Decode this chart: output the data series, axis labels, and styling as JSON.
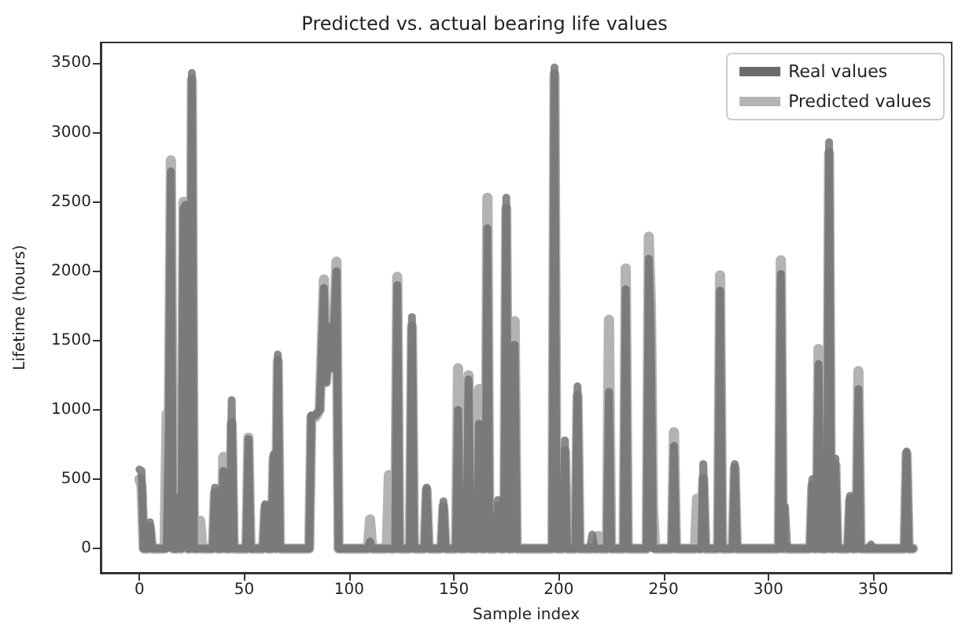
{
  "chart_data": {
    "type": "line",
    "title": "Predicted vs. actual bearing life values",
    "xlabel": "Sample index",
    "ylabel": "Lifetime (hours)",
    "xlim": [
      -18.5,
      387.5
    ],
    "xticks": [
      0,
      50,
      100,
      150,
      200,
      250,
      300,
      350
    ],
    "ylim": [
      -175,
      3650
    ],
    "yticks": [
      0,
      500,
      1000,
      1500,
      2000,
      2500,
      3000,
      3500
    ],
    "grid": false,
    "legend": "top right",
    "line_style": "solid",
    "series": [
      {
        "name": "Real values",
        "color": "#6b6b6b",
        "x": [
          0,
          1,
          2,
          4,
          5,
          6,
          13,
          14,
          15,
          16,
          18,
          19,
          20,
          21,
          22,
          23,
          24,
          25,
          26,
          35,
          36,
          37,
          39,
          40,
          41,
          43,
          44,
          45,
          51,
          52,
          53,
          59,
          60,
          61,
          63,
          64,
          65,
          66,
          67,
          81,
          82,
          84,
          86,
          88,
          89,
          91,
          92,
          94,
          95,
          109,
          110,
          111,
          122,
          123,
          124,
          129,
          130,
          131,
          136,
          137,
          138,
          144,
          145,
          146,
          151,
          152,
          153,
          156,
          157,
          158,
          161,
          162,
          163,
          165,
          166,
          167,
          170,
          171,
          172,
          174,
          175,
          176,
          178,
          179,
          180,
          197,
          198,
          199,
          202,
          203,
          204,
          208,
          209,
          210,
          215,
          216,
          217,
          223,
          224,
          225,
          231,
          232,
          233,
          242,
          243,
          244,
          245,
          254,
          255,
          256,
          268,
          269,
          270,
          276,
          277,
          278,
          283,
          284,
          285,
          305,
          306,
          307,
          308,
          309,
          320,
          321,
          322,
          323,
          324,
          325,
          328,
          329,
          330,
          331,
          332,
          333,
          338,
          339,
          340,
          342,
          343,
          344,
          348,
          349,
          350,
          365,
          366,
          367,
          369
        ],
        "values": [
          570,
          560,
          0,
          0,
          190,
          0,
          0,
          880,
          2720,
          0,
          0,
          370,
          0,
          2450,
          2480,
          0,
          0,
          3430,
          0,
          0,
          440,
          0,
          0,
          560,
          0,
          0,
          1070,
          0,
          0,
          790,
          0,
          0,
          320,
          0,
          0,
          680,
          0,
          1400,
          0,
          0,
          960,
          960,
          1000,
          1880,
          1200,
          1600,
          1300,
          2000,
          0,
          0,
          50,
          0,
          0,
          1900,
          0,
          0,
          1670,
          0,
          0,
          440,
          0,
          0,
          340,
          0,
          0,
          1000,
          0,
          0,
          1220,
          0,
          0,
          900,
          0,
          0,
          2310,
          0,
          0,
          350,
          0,
          0,
          2530,
          0,
          0,
          1470,
          0,
          0,
          3470,
          0,
          0,
          780,
          0,
          0,
          1170,
          0,
          0,
          100,
          0,
          0,
          1130,
          0,
          0,
          1870,
          0,
          0,
          2090,
          1500,
          0,
          0,
          740,
          0,
          0,
          610,
          0,
          0,
          1860,
          0,
          0,
          610,
          0,
          0,
          1980,
          0,
          300,
          0,
          0,
          500,
          0,
          0,
          1330,
          0,
          0,
          2930,
          0,
          0,
          650,
          0,
          0,
          380,
          0,
          0,
          1150,
          0,
          0,
          30,
          0,
          0,
          700,
          0,
          0
        ]
      },
      {
        "name": "Predicted values",
        "color": "#b3b3b3",
        "x": [
          0,
          1,
          2,
          4,
          5,
          6,
          12,
          13,
          14,
          15,
          16,
          20,
          21,
          22,
          23,
          24,
          25,
          26,
          28,
          29,
          30,
          35,
          36,
          37,
          39,
          40,
          41,
          43,
          44,
          45,
          51,
          52,
          53,
          59,
          60,
          61,
          63,
          64,
          65,
          66,
          67,
          81,
          82,
          84,
          86,
          88,
          89,
          91,
          92,
          94,
          95,
          109,
          110,
          111,
          118,
          119,
          120,
          122,
          123,
          124,
          129,
          130,
          131,
          136,
          137,
          138,
          144,
          145,
          146,
          151,
          152,
          153,
          156,
          157,
          158,
          161,
          162,
          163,
          165,
          166,
          167,
          170,
          171,
          172,
          174,
          175,
          176,
          178,
          179,
          180,
          197,
          198,
          199,
          202,
          203,
          204,
          208,
          209,
          210,
          218,
          219,
          220,
          223,
          224,
          225,
          231,
          232,
          233,
          242,
          243,
          244,
          245,
          246,
          254,
          255,
          256,
          265,
          266,
          267,
          268,
          269,
          270,
          276,
          277,
          278,
          283,
          284,
          285,
          305,
          306,
          307,
          320,
          321,
          322,
          323,
          324,
          325,
          328,
          329,
          330,
          331,
          332,
          333,
          338,
          339,
          340,
          342,
          343,
          344,
          365,
          366,
          367,
          369
        ],
        "values": [
          500,
          450,
          0,
          0,
          150,
          0,
          0,
          970,
          900,
          2800,
          0,
          0,
          2500,
          2500,
          0,
          0,
          3380,
          0,
          0,
          200,
          0,
          0,
          400,
          0,
          0,
          660,
          0,
          0,
          900,
          0,
          0,
          800,
          0,
          0,
          300,
          0,
          0,
          650,
          0,
          1350,
          0,
          0,
          950,
          950,
          1000,
          1940,
          1200,
          1600,
          1300,
          2070,
          0,
          0,
          210,
          0,
          0,
          530,
          0,
          0,
          1960,
          0,
          0,
          1600,
          0,
          0,
          420,
          0,
          0,
          300,
          0,
          0,
          1300,
          0,
          0,
          1250,
          0,
          0,
          1150,
          0,
          0,
          2530,
          0,
          0,
          300,
          0,
          0,
          2450,
          0,
          0,
          1640,
          0,
          0,
          3420,
          0,
          0,
          700,
          0,
          0,
          1100,
          0,
          0,
          90,
          0,
          0,
          1650,
          0,
          0,
          2020,
          0,
          0,
          2250,
          1750,
          300,
          0,
          0,
          840,
          0,
          0,
          360,
          0,
          0,
          500,
          0,
          0,
          1970,
          0,
          0,
          580,
          0,
          0,
          2080,
          0,
          0,
          450,
          0,
          0,
          1440,
          0,
          0,
          2850,
          0,
          0,
          600,
          0,
          0,
          350,
          0,
          0,
          1280,
          0,
          0,
          680,
          0,
          0
        ]
      }
    ]
  }
}
